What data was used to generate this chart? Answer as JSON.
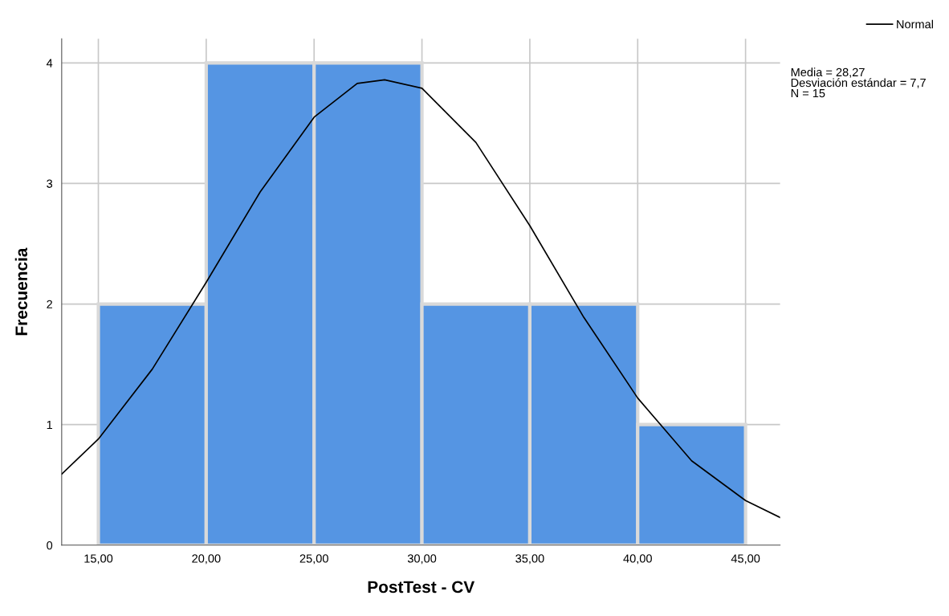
{
  "chart_data": {
    "type": "histogram",
    "xlabel": "PostTest - CV",
    "ylabel": "Frecuencia",
    "bins": [
      15,
      20,
      25,
      30,
      35,
      40,
      45
    ],
    "values": [
      2,
      4,
      4,
      2,
      2,
      1
    ],
    "color": "#5595e3",
    "series": [
      {
        "type": "line",
        "name": "Normal",
        "color": "#000000",
        "x": [
          13.3,
          15,
          17.5,
          20,
          22.5,
          25,
          27,
          28.27,
          30,
          32.5,
          35,
          37.5,
          40,
          42.5,
          45,
          46.6
        ],
        "values": [
          0.59,
          0.88,
          1.46,
          2.18,
          2.93,
          3.55,
          3.83,
          3.86,
          3.79,
          3.34,
          2.65,
          1.89,
          1.22,
          0.7,
          0.37,
          0.23
        ]
      }
    ],
    "xlim": [
      13.3,
      46.6
    ],
    "ylim": [
      0,
      4.2
    ],
    "xticks": [
      {
        "value": 15,
        "label": "15,00"
      },
      {
        "value": 20,
        "label": "20,00"
      },
      {
        "value": 25,
        "label": "25,00"
      },
      {
        "value": 30,
        "label": "30,00"
      },
      {
        "value": 35,
        "label": "35,00"
      },
      {
        "value": 40,
        "label": "40,00"
      },
      {
        "value": 45,
        "label": "45,00"
      }
    ],
    "yticks": [
      0,
      1,
      2,
      3,
      4
    ],
    "grid": true,
    "legend": "top right",
    "annotations": [
      "Media = 28,27\nDesviación estándar = 7,7\nN = 15"
    ]
  }
}
